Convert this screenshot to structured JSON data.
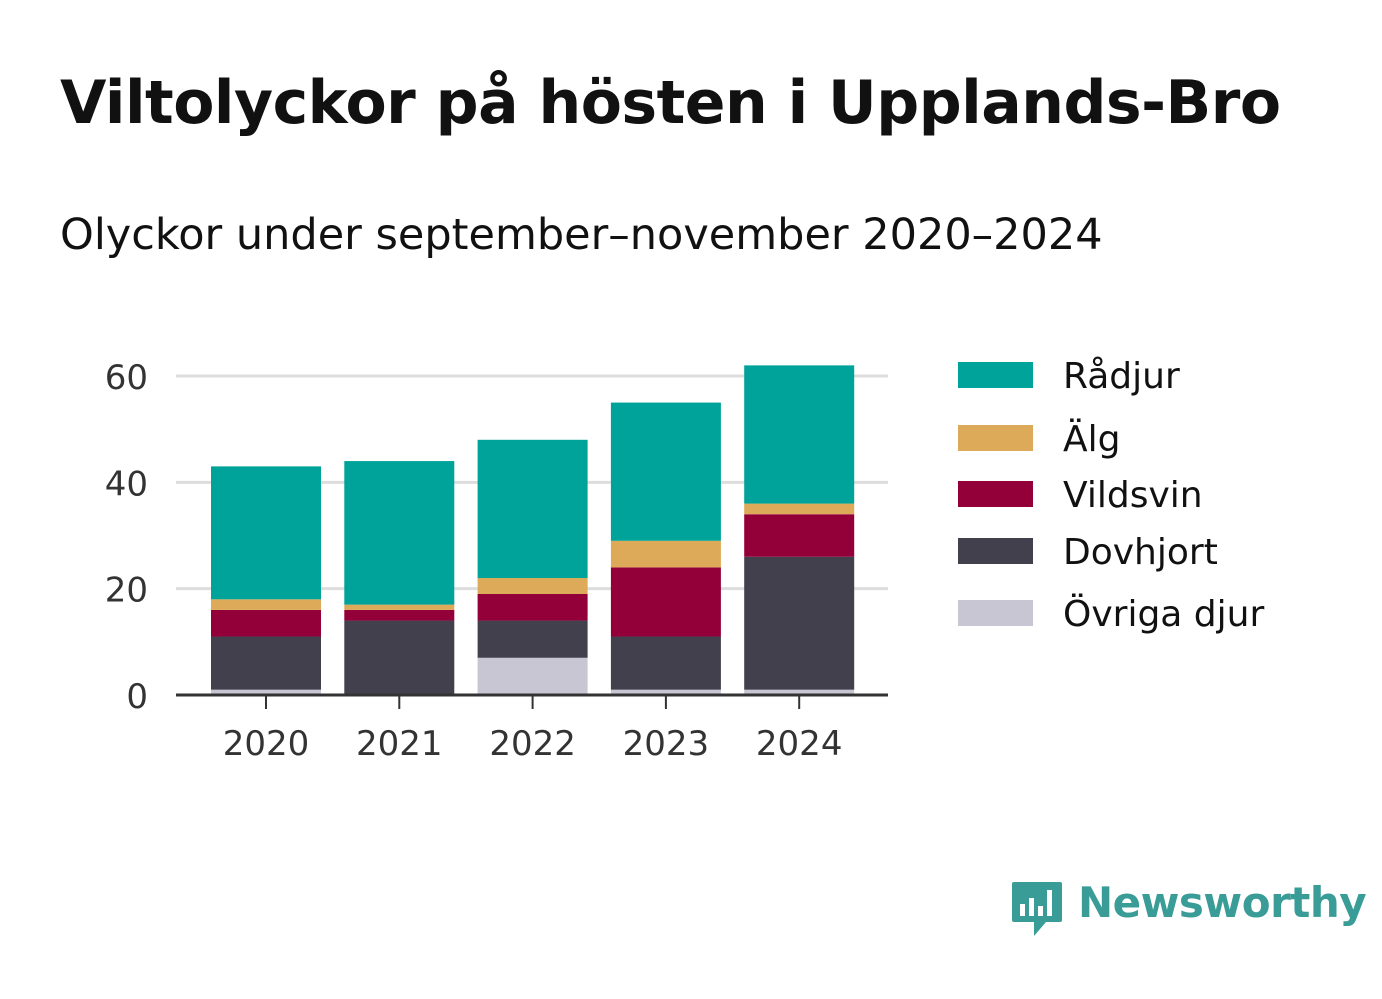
{
  "title": "Viltolyckor på hösten i Upplands-Bro",
  "subtitle": "Olyckor under september–november 2020–2024",
  "brand": {
    "name": "Newsworthy",
    "color": "#3a9c96",
    "icon": "bar-chart-badge-icon"
  },
  "chart_data": {
    "type": "bar",
    "stacked": true,
    "categories": [
      "2020",
      "2021",
      "2022",
      "2023",
      "2024"
    ],
    "series": [
      {
        "name": "Övriga djur",
        "color": "#c8c6d2",
        "values": [
          1,
          0,
          7,
          1,
          1
        ]
      },
      {
        "name": "Dovhjort",
        "color": "#42404d",
        "values": [
          10,
          14,
          7,
          10,
          25
        ]
      },
      {
        "name": "Vildsvin",
        "color": "#930039",
        "values": [
          5,
          2,
          5,
          13,
          8
        ]
      },
      {
        "name": "Älg",
        "color": "#dcaa58",
        "values": [
          2,
          1,
          3,
          5,
          2
        ]
      },
      {
        "name": "Rådjur",
        "color": "#00a39a",
        "values": [
          25,
          27,
          26,
          26,
          26
        ]
      }
    ],
    "legend_order": [
      "Rådjur",
      "Älg",
      "Vildsvin",
      "Dovhjort",
      "Övriga djur"
    ],
    "legend_position": "right",
    "ylim": [
      0,
      60
    ],
    "yticks": [
      0,
      20,
      40,
      60
    ],
    "grid": true
  }
}
